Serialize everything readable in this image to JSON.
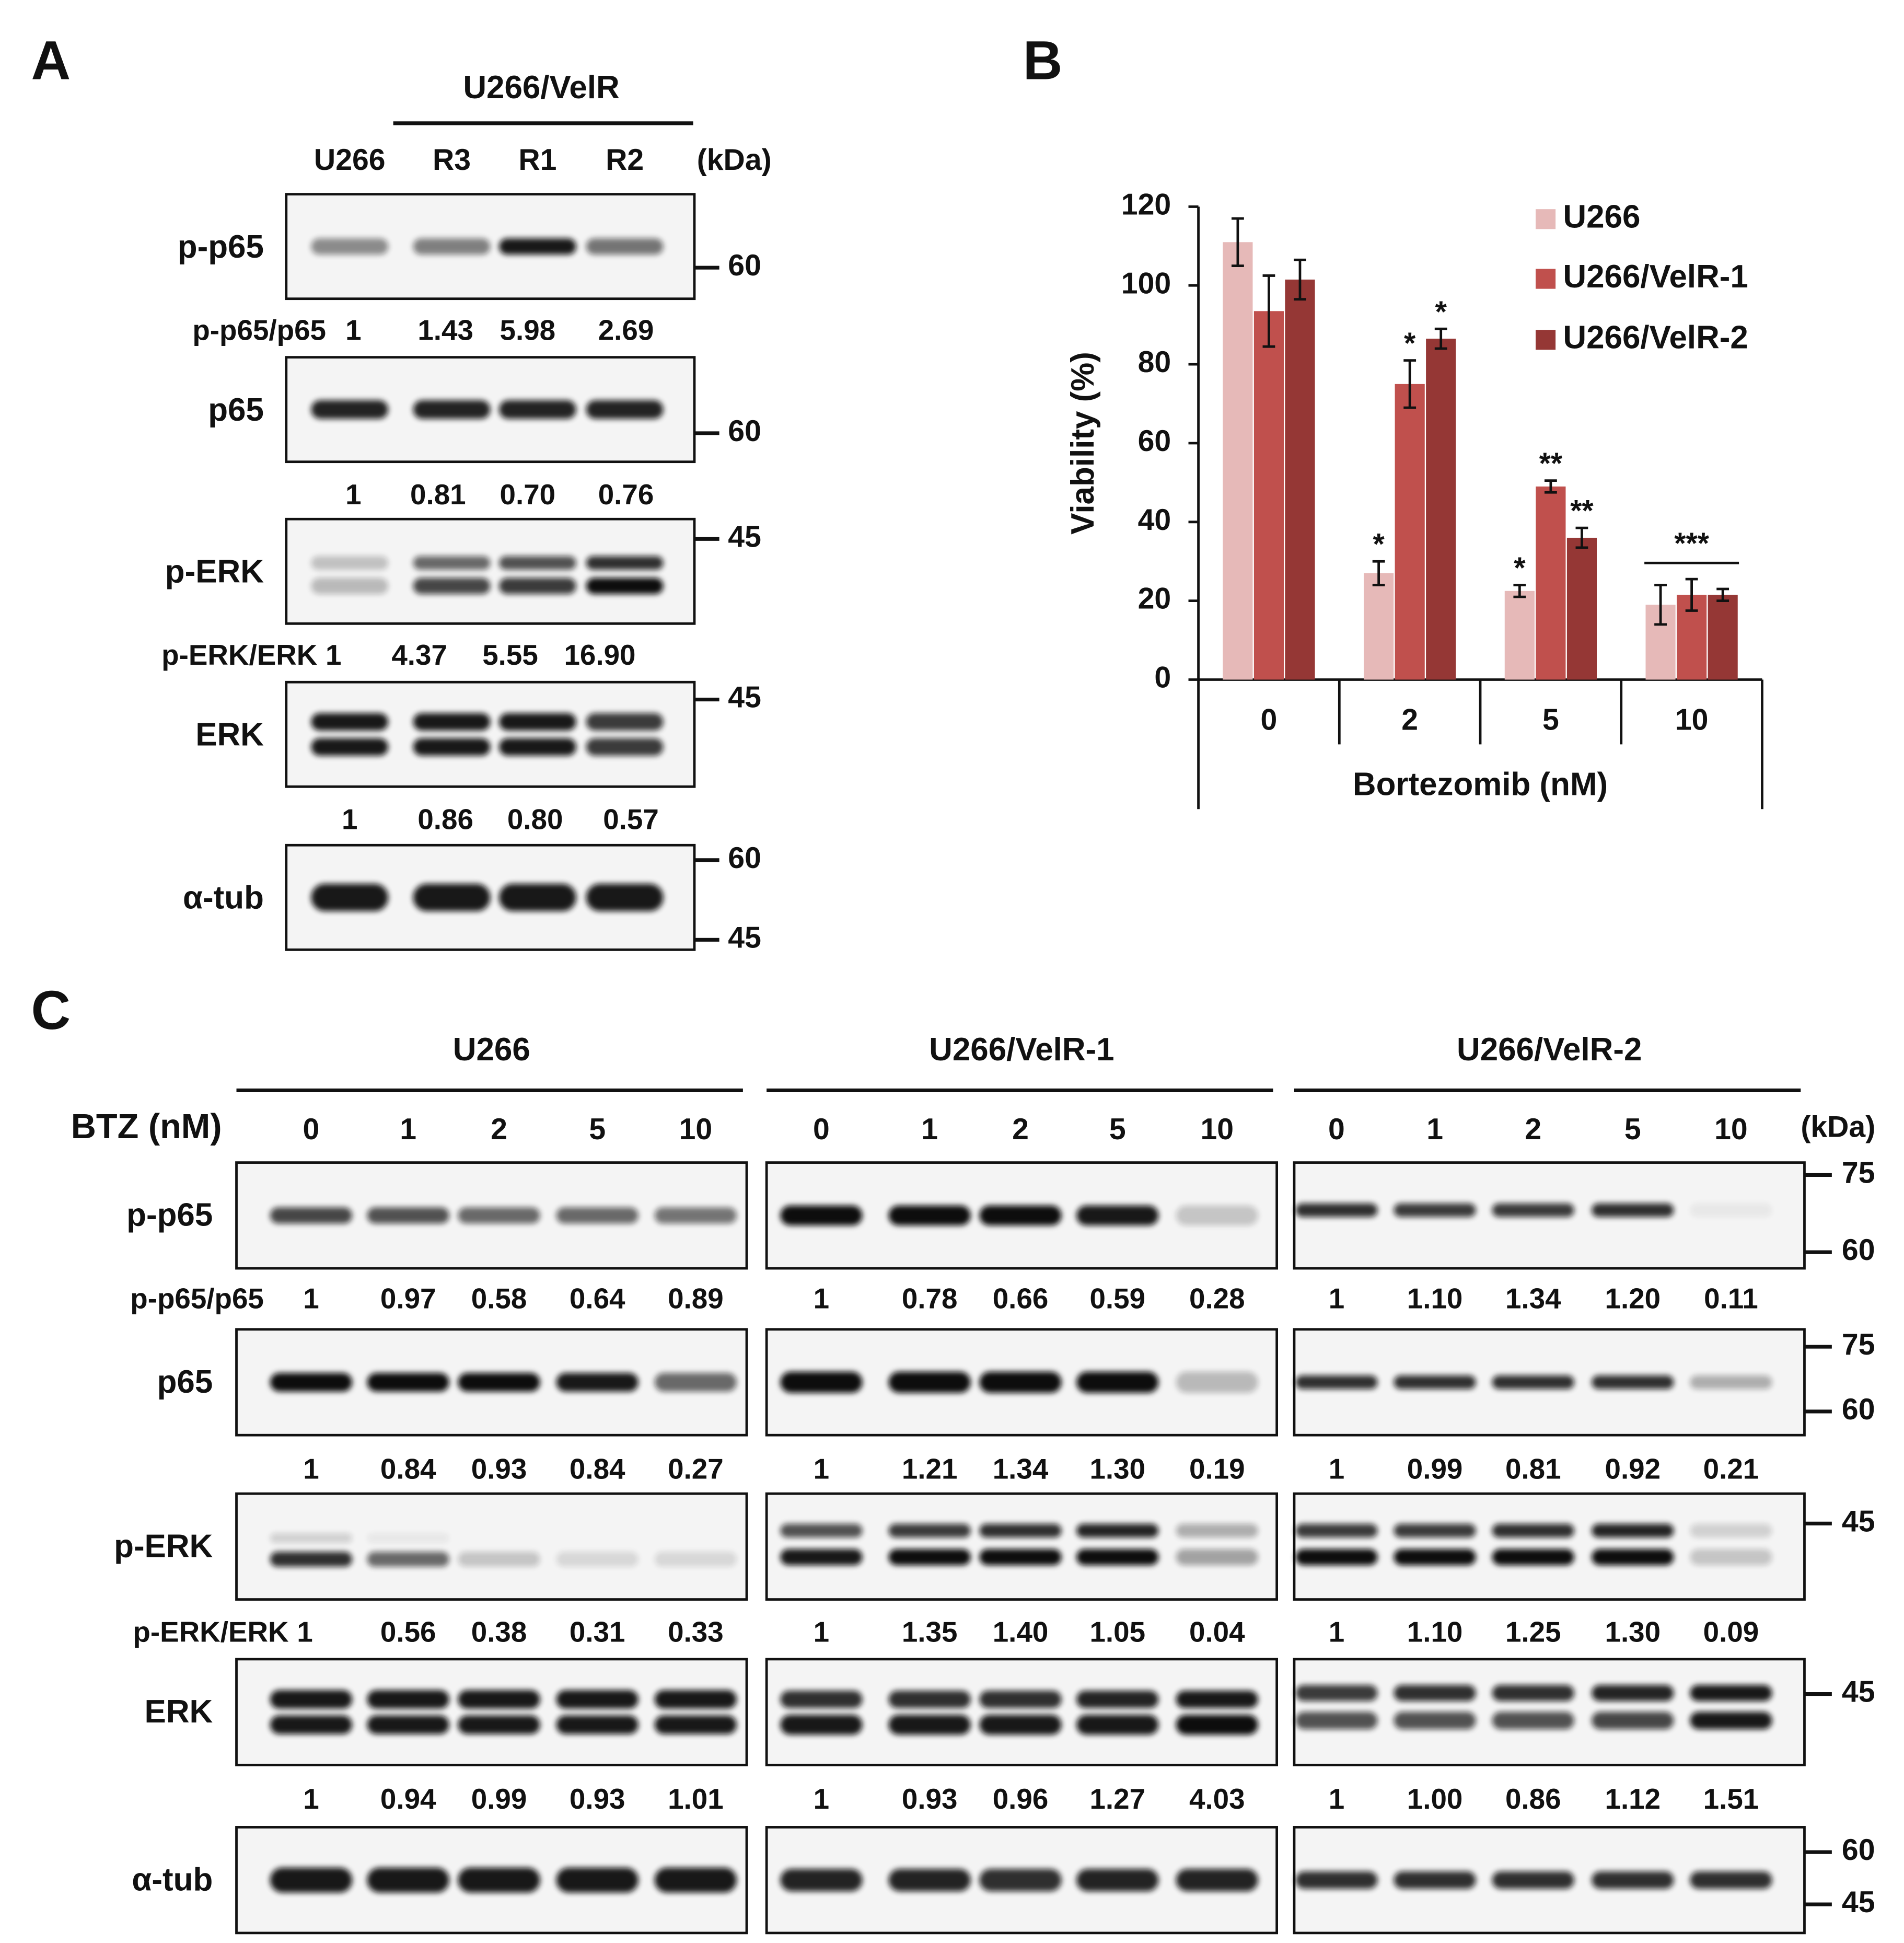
{
  "panel_a": {
    "label": "A",
    "group": "U266/VelR",
    "lanes": [
      "U266",
      "R3",
      "R1",
      "R2"
    ],
    "unit": "(kDa)",
    "blots": [
      {
        "name": "p-p65",
        "markers": [
          "60"
        ]
      },
      {
        "name": "p65",
        "markers": [
          "60"
        ]
      },
      {
        "name": "p-ERK",
        "markers": [
          "45"
        ]
      },
      {
        "name": "ERK",
        "markers": [
          "45"
        ]
      },
      {
        "name": "α-tub",
        "markers": [
          "60",
          "45"
        ]
      }
    ],
    "quant": [
      {
        "label": "p-p65/p65",
        "values": [
          "1",
          "1.43",
          "5.98",
          "2.69"
        ]
      },
      {
        "values": [
          "1",
          "0.81",
          "0.70",
          "0.76"
        ]
      },
      {
        "label": "p-ERK/ERK",
        "values": [
          "1",
          "4.37",
          "5.55",
          "16.90"
        ]
      },
      {
        "values": [
          "1",
          "0.86",
          "0.80",
          "0.57"
        ]
      }
    ]
  },
  "chart_data": {
    "type": "bar",
    "panel_label": "B",
    "categories": [
      "0",
      "2",
      "5",
      "10"
    ],
    "xlabel": "Bortezomib (nM)",
    "ylabel": "Viability (%)",
    "ylim": [
      0,
      120
    ],
    "yticks": [
      0,
      20,
      40,
      60,
      80,
      100,
      120
    ],
    "series": [
      {
        "name": "U266",
        "color": "#e6b9b8",
        "values": [
          111,
          27,
          22.5,
          19
        ],
        "errors": [
          6,
          3,
          1.5,
          5
        ],
        "significance": [
          null,
          "*",
          "*",
          null
        ]
      },
      {
        "name": "U266/VelR-1",
        "color": "#c0504d",
        "values": [
          93.5,
          75,
          49,
          21.5
        ],
        "errors": [
          9,
          6,
          1.5,
          4
        ],
        "significance": [
          null,
          "*",
          "**",
          null
        ]
      },
      {
        "name": "U266/VelR-2",
        "color": "#953735",
        "values": [
          101.5,
          86.5,
          36,
          21.5
        ],
        "errors": [
          5,
          2.5,
          2.5,
          1.5
        ],
        "significance": [
          null,
          "*",
          "**",
          null
        ]
      }
    ],
    "category_annotations": [
      null,
      null,
      null,
      "***"
    ]
  },
  "panel_c": {
    "label": "C",
    "condition": "BTZ (nM)",
    "unit": "(kDa)",
    "groups": [
      {
        "name": "U266",
        "lanes": [
          "0",
          "1",
          "2",
          "5",
          "10"
        ]
      },
      {
        "name": "U266/VelR-1",
        "lanes": [
          "0",
          "1",
          "2",
          "5",
          "10"
        ]
      },
      {
        "name": "U266/VelR-2",
        "lanes": [
          "0",
          "1",
          "2",
          "5",
          "10"
        ]
      }
    ],
    "blots": [
      {
        "name": "p-p65",
        "markers": [
          "75",
          "60"
        ]
      },
      {
        "name": "p65",
        "markers": [
          "75",
          "60"
        ]
      },
      {
        "name": "p-ERK",
        "markers": [
          "45"
        ]
      },
      {
        "name": "ERK",
        "markers": [
          "45"
        ]
      },
      {
        "name": "α-tub",
        "markers": [
          "60",
          "45"
        ]
      }
    ],
    "quant": [
      {
        "label": "p-p65/p65",
        "values": [
          [
            "1",
            "0.97",
            "0.58",
            "0.64",
            "0.89"
          ],
          [
            "1",
            "0.78",
            "0.66",
            "0.59",
            "0.28"
          ],
          [
            "1",
            "1.10",
            "1.34",
            "1.20",
            "0.11"
          ]
        ]
      },
      {
        "values": [
          [
            "1",
            "0.84",
            "0.93",
            "0.84",
            "0.27"
          ],
          [
            "1",
            "1.21",
            "1.34",
            "1.30",
            "0.19"
          ],
          [
            "1",
            "0.99",
            "0.81",
            "0.92",
            "0.21"
          ]
        ]
      },
      {
        "label": "p-ERK/ERK",
        "values": [
          [
            "1",
            "0.56",
            "0.38",
            "0.31",
            "0.33"
          ],
          [
            "1",
            "1.35",
            "1.40",
            "1.05",
            "0.04"
          ],
          [
            "1",
            "1.10",
            "1.25",
            "1.30",
            "0.09"
          ]
        ]
      },
      {
        "values": [
          [
            "1",
            "0.94",
            "0.99",
            "0.93",
            "1.01"
          ],
          [
            "1",
            "0.93",
            "0.96",
            "1.27",
            "4.03"
          ],
          [
            "1",
            "1.00",
            "0.86",
            "1.12",
            "1.51"
          ]
        ]
      }
    ]
  }
}
